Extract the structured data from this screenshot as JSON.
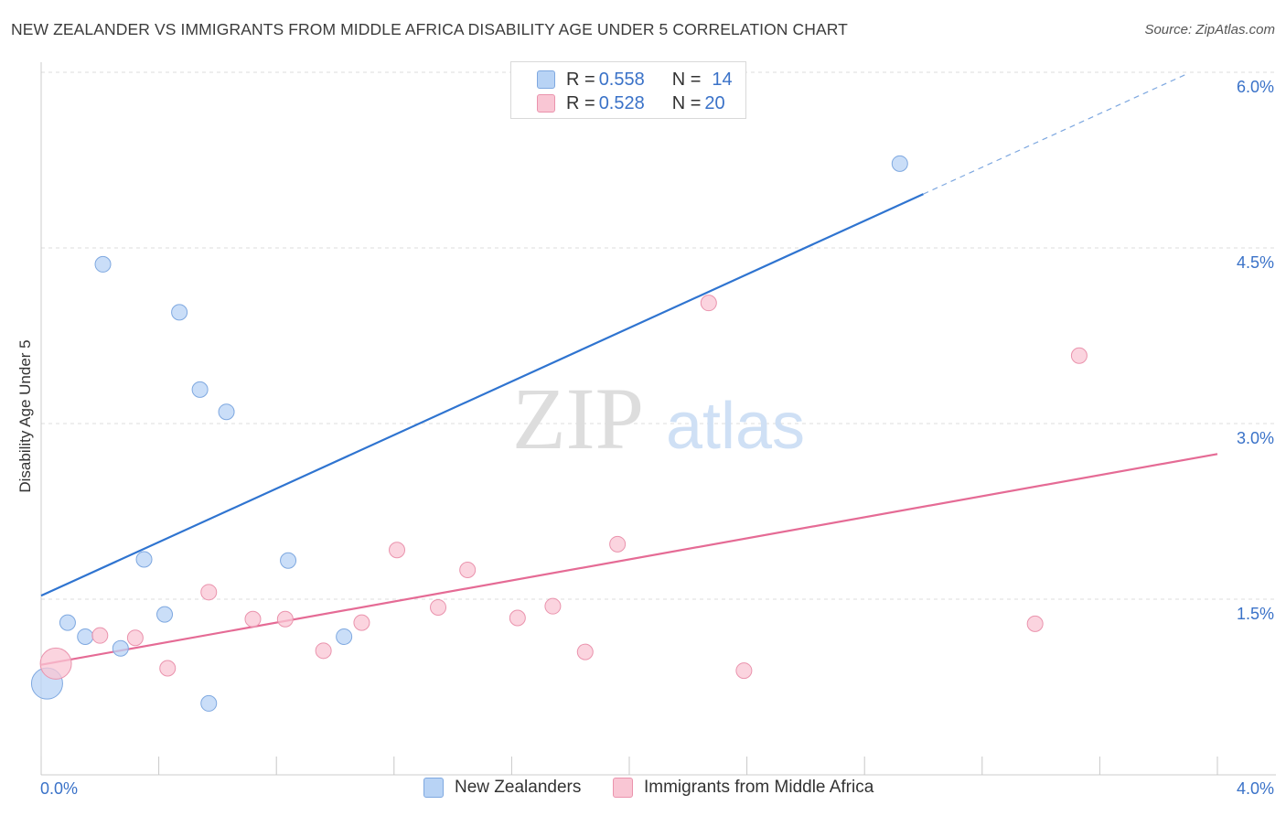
{
  "title": "NEW ZEALANDER VS IMMIGRANTS FROM MIDDLE AFRICA DISABILITY AGE UNDER 5 CORRELATION CHART",
  "source": "Source: ZipAtlas.com",
  "watermark": {
    "zip": "ZIP",
    "atlas": "atlas"
  },
  "colors": {
    "blue_fill": "#b8d3f5",
    "blue_stroke": "#7ea8e0",
    "blue_line": "#2f74d0",
    "pink_fill": "#f9c6d4",
    "pink_stroke": "#ea93ad",
    "pink_line": "#e56b95",
    "value_text": "#3a72c8",
    "grid": "#dddddd"
  },
  "legend_top": [
    {
      "r_label": "R = ",
      "r_value": "0.558",
      "n_label": "N = ",
      "n_value": "14"
    },
    {
      "r_label": "R = ",
      "r_value": "0.528",
      "n_label": "N = ",
      "n_value": "20"
    }
  ],
  "chart_data": {
    "type": "scatter",
    "title": "NEW ZEALANDER VS IMMIGRANTS FROM MIDDLE AFRICA DISABILITY AGE UNDER 5 CORRELATION CHART",
    "xlabel": "",
    "ylabel": "Disability Age Under 5",
    "xlim": [
      0,
      4.0
    ],
    "ylim": [
      0,
      6.0
    ],
    "x_tick_labels": [
      "0.0%",
      "4.0%"
    ],
    "y_ticks": [
      1.5,
      3.0,
      4.5,
      6.0
    ],
    "y_tick_labels": [
      "1.5%",
      "3.0%",
      "4.5%",
      "6.0%"
    ],
    "grid": true,
    "legend_position": "bottom",
    "series": [
      {
        "name": "New Zealanders",
        "color": "#b8d3f5",
        "r": 0.558,
        "n": 14,
        "points": [
          {
            "x": 0.02,
            "y": 0.78,
            "size": "large"
          },
          {
            "x": 0.09,
            "y": 1.3
          },
          {
            "x": 0.15,
            "y": 1.18
          },
          {
            "x": 0.21,
            "y": 4.36
          },
          {
            "x": 0.27,
            "y": 1.08
          },
          {
            "x": 0.35,
            "y": 1.84
          },
          {
            "x": 0.42,
            "y": 1.37
          },
          {
            "x": 0.47,
            "y": 3.95
          },
          {
            "x": 0.54,
            "y": 3.29
          },
          {
            "x": 0.57,
            "y": 0.61
          },
          {
            "x": 0.63,
            "y": 3.1
          },
          {
            "x": 0.84,
            "y": 1.83
          },
          {
            "x": 1.03,
            "y": 1.18
          },
          {
            "x": 2.92,
            "y": 5.22
          }
        ],
        "trend": {
          "x0": 0.0,
          "y0": 1.53,
          "x1": 3.0,
          "y1": 4.96,
          "dashed_to_x": 3.9,
          "dashed_to_y": 5.99
        }
      },
      {
        "name": "Immigrants from Middle Africa",
        "color": "#f9c6d4",
        "r": 0.528,
        "n": 20,
        "points": [
          {
            "x": 0.05,
            "y": 0.95,
            "size": "large"
          },
          {
            "x": 0.2,
            "y": 1.19
          },
          {
            "x": 0.32,
            "y": 1.17
          },
          {
            "x": 0.43,
            "y": 0.91
          },
          {
            "x": 0.57,
            "y": 1.56
          },
          {
            "x": 0.72,
            "y": 1.33
          },
          {
            "x": 0.83,
            "y": 1.33
          },
          {
            "x": 0.96,
            "y": 1.06
          },
          {
            "x": 1.09,
            "y": 1.3
          },
          {
            "x": 1.21,
            "y": 1.92
          },
          {
            "x": 1.35,
            "y": 1.43
          },
          {
            "x": 1.45,
            "y": 1.75
          },
          {
            "x": 1.62,
            "y": 1.34
          },
          {
            "x": 1.74,
            "y": 1.44
          },
          {
            "x": 1.85,
            "y": 1.05
          },
          {
            "x": 1.96,
            "y": 1.97
          },
          {
            "x": 2.27,
            "y": 4.03
          },
          {
            "x": 2.39,
            "y": 0.89
          },
          {
            "x": 3.38,
            "y": 1.29
          },
          {
            "x": 3.53,
            "y": 3.58
          }
        ],
        "trend": {
          "x0": 0.0,
          "y0": 0.94,
          "x1": 4.0,
          "y1": 2.74
        }
      }
    ]
  }
}
